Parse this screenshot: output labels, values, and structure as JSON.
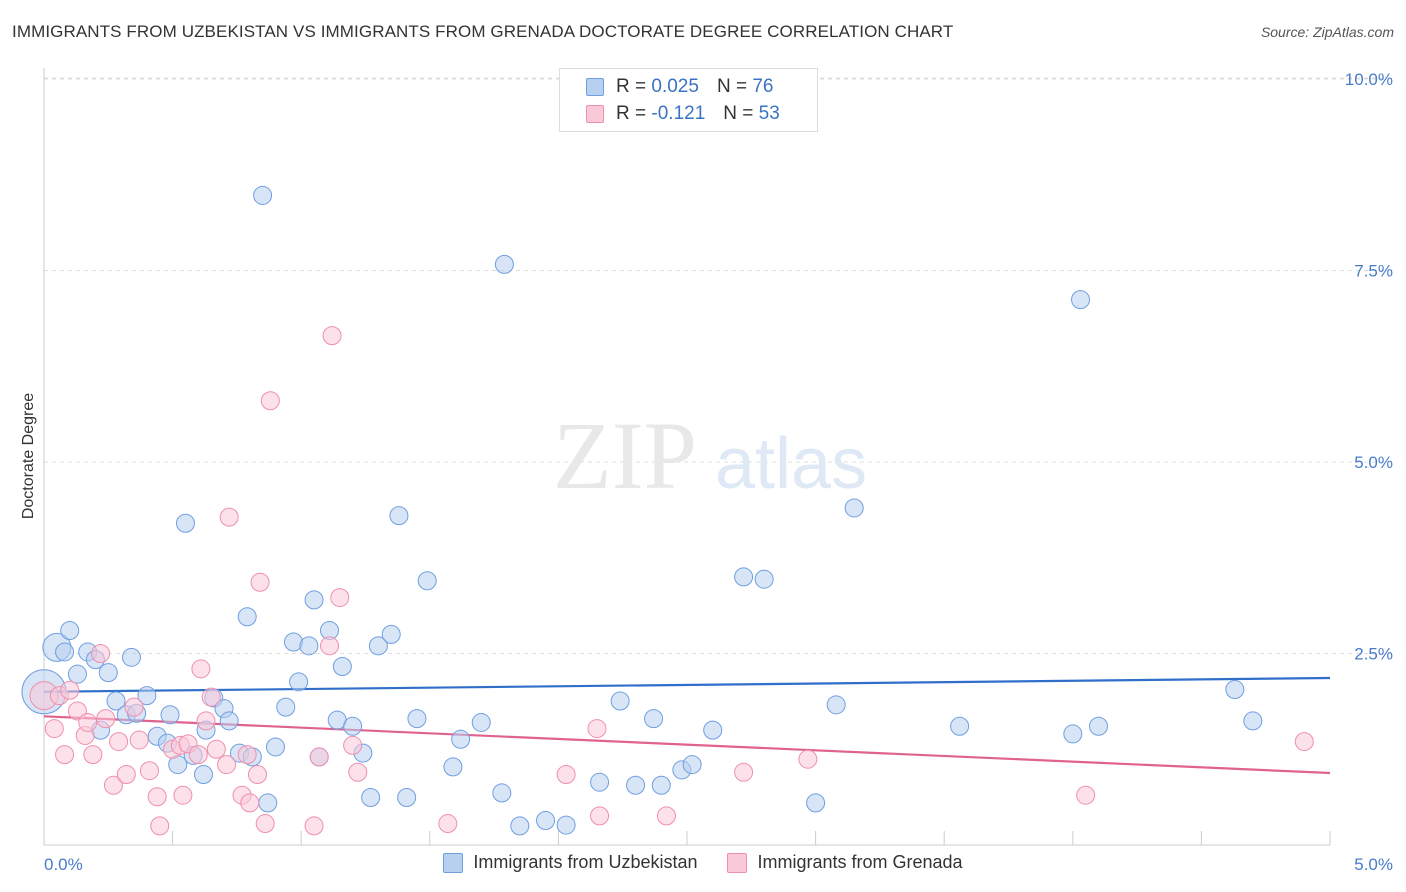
{
  "title": "IMMIGRANTS FROM UZBEKISTAN VS IMMIGRANTS FROM GRENADA DOCTORATE DEGREE CORRELATION CHART",
  "source": "Source: ZipAtlas.com",
  "watermark": {
    "zip": "ZIP",
    "atlas": "atlas"
  },
  "legend": {
    "r_label": "R =",
    "n_label": "N =",
    "series": [
      {
        "name": "Immigrants from Uzbekistan",
        "r": "0.025",
        "n": "76",
        "fill": "#b8d0f0",
        "stroke": "#6f9fe0"
      },
      {
        "name": "Immigrants from Grenada",
        "r": "-0.121",
        "n": "53",
        "fill": "#f9c9d8",
        "stroke": "#ef8fae"
      }
    ]
  },
  "chart_data": {
    "type": "scatter",
    "title": "IMMIGRANTS FROM UZBEKISTAN VS IMMIGRANTS FROM GRENADA DOCTORATE DEGREE CORRELATION CHART",
    "xlabel": "",
    "ylabel": "Doctorate Degree",
    "xlim": [
      0,
      5
    ],
    "ylim": [
      0,
      10.5
    ],
    "x_tick_labels": [
      "0.0%",
      "5.0%"
    ],
    "y_ticks": [
      2.5,
      5.0,
      7.5,
      10.0
    ],
    "y_tick_labels": [
      "2.5%",
      "5.0%",
      "7.5%",
      "10.0%"
    ],
    "colors": {
      "uzbekistan_line": "#2f6fca",
      "grenada_line": "#e0628f",
      "grid": "#dddddd"
    },
    "series": [
      {
        "name": "Immigrants from Uzbekistan",
        "trend": [
          [
            0,
            2.0
          ],
          [
            5,
            2.18
          ]
        ],
        "points": [
          [
            0.0,
            2.0,
            22
          ],
          [
            0.05,
            2.58,
            14
          ],
          [
            0.08,
            2.52,
            9
          ],
          [
            0.1,
            2.8,
            9
          ],
          [
            0.13,
            2.23,
            9
          ],
          [
            0.17,
            2.52,
            9
          ],
          [
            0.2,
            2.42,
            9
          ],
          [
            0.22,
            1.5,
            9
          ],
          [
            0.25,
            2.25,
            9
          ],
          [
            0.28,
            1.88,
            9
          ],
          [
            0.32,
            1.7,
            9
          ],
          [
            0.34,
            2.45,
            9
          ],
          [
            0.36,
            1.72,
            9
          ],
          [
            0.4,
            1.95,
            9
          ],
          [
            0.44,
            1.42,
            9
          ],
          [
            0.48,
            1.33,
            9
          ],
          [
            0.49,
            1.7,
            9
          ],
          [
            0.52,
            1.05,
            9
          ],
          [
            0.55,
            4.2,
            9
          ],
          [
            0.58,
            1.17,
            9
          ],
          [
            0.62,
            0.92,
            9
          ],
          [
            0.63,
            1.5,
            9
          ],
          [
            0.66,
            1.92,
            9
          ],
          [
            0.7,
            1.78,
            9
          ],
          [
            0.72,
            1.62,
            9
          ],
          [
            0.76,
            1.2,
            9
          ],
          [
            0.79,
            2.98,
            9
          ],
          [
            0.81,
            1.15,
            9
          ],
          [
            0.85,
            8.48,
            9
          ],
          [
            0.87,
            0.55,
            9
          ],
          [
            0.9,
            1.28,
            9
          ],
          [
            0.94,
            1.8,
            9
          ],
          [
            0.97,
            2.65,
            9
          ],
          [
            0.99,
            2.13,
            9
          ],
          [
            1.03,
            2.6,
            9
          ],
          [
            1.05,
            3.2,
            9
          ],
          [
            1.07,
            1.15,
            9
          ],
          [
            1.11,
            2.8,
            9
          ],
          [
            1.14,
            1.63,
            9
          ],
          [
            1.16,
            2.33,
            9
          ],
          [
            1.2,
            1.55,
            9
          ],
          [
            1.24,
            1.2,
            9
          ],
          [
            1.27,
            0.62,
            9
          ],
          [
            1.3,
            2.6,
            9
          ],
          [
            1.35,
            2.75,
            9
          ],
          [
            1.38,
            4.3,
            9
          ],
          [
            1.41,
            0.62,
            9
          ],
          [
            1.45,
            1.65,
            9
          ],
          [
            1.49,
            3.45,
            9
          ],
          [
            1.59,
            1.02,
            9
          ],
          [
            1.62,
            1.38,
            9
          ],
          [
            1.7,
            1.6,
            9
          ],
          [
            1.78,
            0.68,
            9
          ],
          [
            1.79,
            7.58,
            9
          ],
          [
            1.85,
            0.25,
            9
          ],
          [
            1.95,
            0.32,
            9
          ],
          [
            2.03,
            0.26,
            9
          ],
          [
            2.16,
            0.82,
            9
          ],
          [
            2.24,
            1.88,
            9
          ],
          [
            2.3,
            0.78,
            9
          ],
          [
            2.37,
            1.65,
            9
          ],
          [
            2.4,
            0.78,
            9
          ],
          [
            2.48,
            0.98,
            9
          ],
          [
            2.52,
            1.05,
            9
          ],
          [
            2.6,
            1.5,
            9
          ],
          [
            2.72,
            3.5,
            9
          ],
          [
            2.8,
            3.47,
            9
          ],
          [
            3.0,
            0.55,
            9
          ],
          [
            3.08,
            1.83,
            9
          ],
          [
            3.15,
            4.4,
            9
          ],
          [
            3.56,
            1.55,
            9
          ],
          [
            4.0,
            1.45,
            9
          ],
          [
            4.03,
            7.12,
            9
          ],
          [
            4.1,
            1.55,
            9
          ],
          [
            4.63,
            2.03,
            9
          ],
          [
            4.7,
            1.62,
            9
          ]
        ]
      },
      {
        "name": "Immigrants from Grenada",
        "trend": [
          [
            0,
            1.68
          ],
          [
            5,
            0.94
          ]
        ],
        "points": [
          [
            0.0,
            1.95,
            14
          ],
          [
            0.04,
            1.52,
            9
          ],
          [
            0.06,
            1.95,
            9
          ],
          [
            0.08,
            1.18,
            9
          ],
          [
            0.1,
            2.02,
            9
          ],
          [
            0.13,
            1.75,
            9
          ],
          [
            0.16,
            1.43,
            9
          ],
          [
            0.17,
            1.6,
            9
          ],
          [
            0.19,
            1.18,
            9
          ],
          [
            0.22,
            2.5,
            9
          ],
          [
            0.24,
            1.65,
            9
          ],
          [
            0.27,
            0.78,
            9
          ],
          [
            0.29,
            1.35,
            9
          ],
          [
            0.32,
            0.92,
            9
          ],
          [
            0.35,
            1.8,
            9
          ],
          [
            0.37,
            1.37,
            9
          ],
          [
            0.41,
            0.97,
            9
          ],
          [
            0.44,
            0.63,
            9
          ],
          [
            0.45,
            0.25,
            9
          ],
          [
            0.5,
            1.25,
            9
          ],
          [
            0.53,
            1.3,
            9
          ],
          [
            0.54,
            0.65,
            9
          ],
          [
            0.56,
            1.32,
            9
          ],
          [
            0.6,
            1.18,
            9
          ],
          [
            0.61,
            2.3,
            9
          ],
          [
            0.63,
            1.62,
            9
          ],
          [
            0.65,
            1.93,
            9
          ],
          [
            0.67,
            1.25,
            9
          ],
          [
            0.71,
            1.05,
            9
          ],
          [
            0.72,
            4.28,
            9
          ],
          [
            0.77,
            0.65,
            9
          ],
          [
            0.79,
            1.18,
            9
          ],
          [
            0.8,
            0.55,
            9
          ],
          [
            0.83,
            0.92,
            9
          ],
          [
            0.84,
            3.43,
            9
          ],
          [
            0.86,
            0.28,
            9
          ],
          [
            0.88,
            5.8,
            9
          ],
          [
            1.05,
            0.25,
            9
          ],
          [
            1.07,
            1.15,
            9
          ],
          [
            1.11,
            2.6,
            9
          ],
          [
            1.12,
            6.65,
            9
          ],
          [
            1.15,
            3.23,
            9
          ],
          [
            1.2,
            1.3,
            9
          ],
          [
            1.22,
            0.95,
            9
          ],
          [
            1.57,
            0.28,
            9
          ],
          [
            2.03,
            0.92,
            9
          ],
          [
            2.15,
            1.52,
            9
          ],
          [
            2.16,
            0.38,
            9
          ],
          [
            2.42,
            0.38,
            9
          ],
          [
            2.72,
            0.95,
            9
          ],
          [
            2.97,
            1.12,
            9
          ],
          [
            4.05,
            0.65,
            9
          ],
          [
            4.9,
            1.35,
            9
          ]
        ]
      }
    ]
  }
}
